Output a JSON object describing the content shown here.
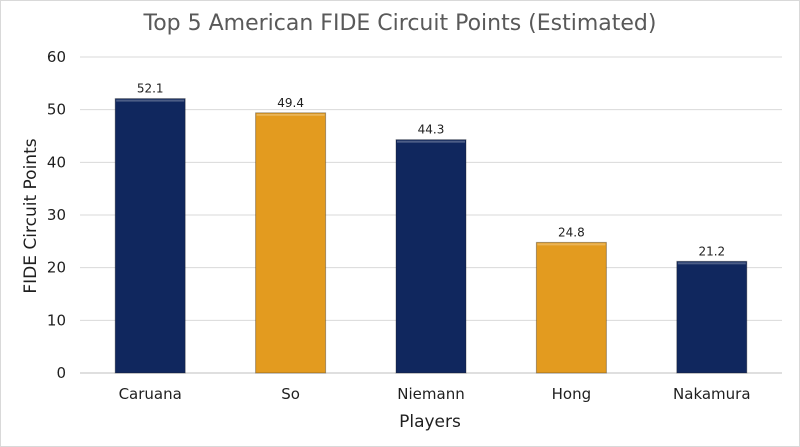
{
  "chart_data": {
    "type": "bar",
    "title": "Top 5 American FIDE Circuit Points (Estimated)",
    "xlabel": "Players",
    "ylabel": "FIDE Circuit Points",
    "categories": [
      "Caruana",
      "So",
      "Niemann",
      "Hong",
      "Nakamura"
    ],
    "values": [
      52.1,
      49.4,
      44.3,
      24.8,
      21.2
    ],
    "data_labels": [
      "52.1",
      "49.4",
      "44.3",
      "24.8",
      "21.2"
    ],
    "bar_colors": [
      "#10275e",
      "#e39b1f",
      "#10275e",
      "#e39b1f",
      "#10275e"
    ],
    "ylim": [
      0,
      60
    ],
    "yticks": [
      0,
      10,
      20,
      30,
      40,
      50,
      60
    ],
    "grid": true,
    "legend": "none"
  },
  "colors": {
    "navy": "#10275e",
    "gold": "#e39b1f",
    "grid": "#d9d9d9",
    "title": "#595959"
  }
}
